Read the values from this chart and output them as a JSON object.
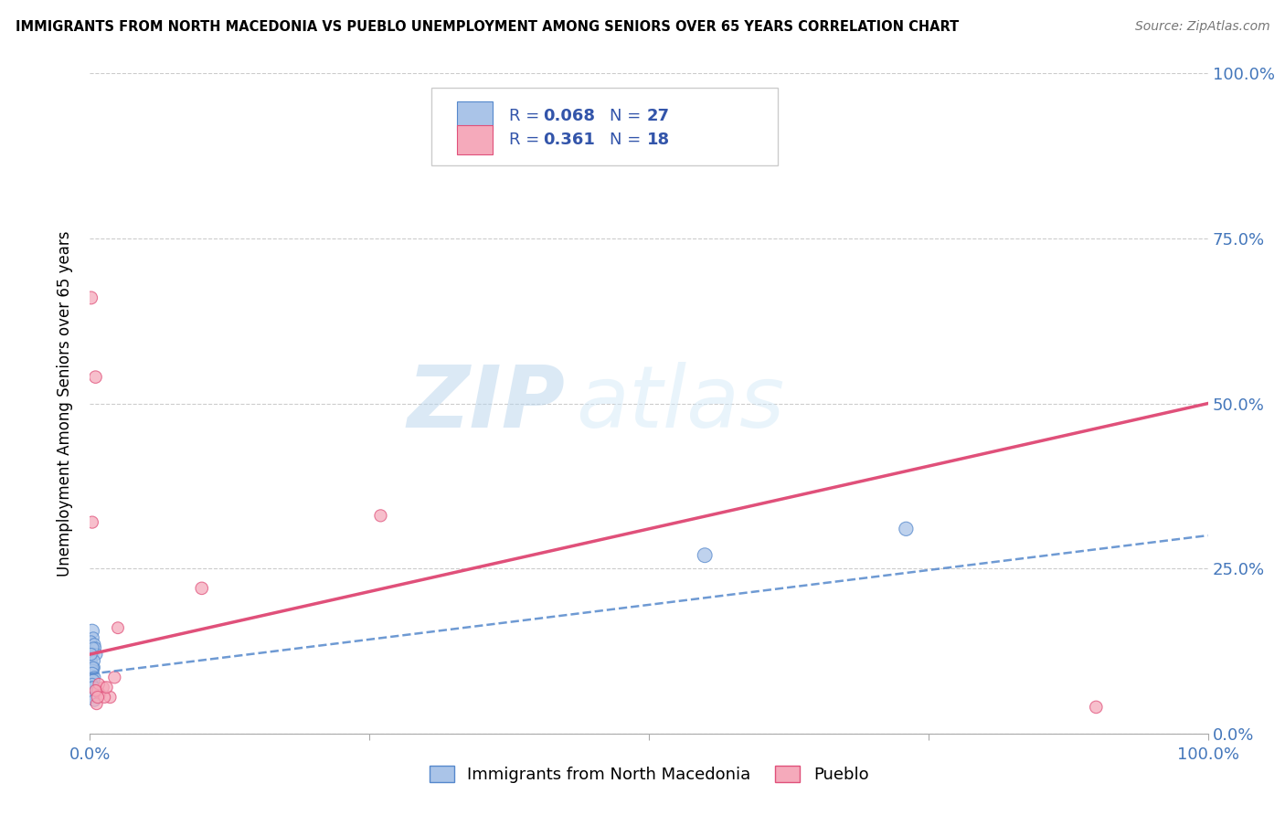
{
  "title": "IMMIGRANTS FROM NORTH MACEDONIA VS PUEBLO UNEMPLOYMENT AMONG SENIORS OVER 65 YEARS CORRELATION CHART",
  "source": "Source: ZipAtlas.com",
  "ylabel": "Unemployment Among Seniors over 65 years",
  "xlim": [
    0,
    1.0
  ],
  "ylim": [
    0,
    1.0
  ],
  "blue_R": "0.068",
  "blue_N": "27",
  "pink_R": "0.361",
  "pink_N": "18",
  "blue_color": "#aac4e8",
  "pink_color": "#f5aabb",
  "blue_line_color": "#5588cc",
  "pink_line_color": "#e0507a",
  "watermark_zip": "ZIP",
  "watermark_atlas": "atlas",
  "blue_scatter_x": [
    0.002,
    0.003,
    0.001,
    0.004,
    0.005,
    0.002,
    0.003,
    0.006,
    0.001,
    0.002,
    0.003,
    0.004,
    0.002,
    0.001,
    0.003,
    0.002,
    0.004,
    0.003,
    0.002,
    0.001,
    0.005,
    0.003,
    0.002,
    0.004,
    0.55,
    0.73,
    0.003
  ],
  "blue_scatter_y": [
    0.155,
    0.145,
    0.14,
    0.135,
    0.13,
    0.12,
    0.1,
    0.12,
    0.11,
    0.1,
    0.13,
    0.11,
    0.095,
    0.12,
    0.1,
    0.09,
    0.085,
    0.08,
    0.075,
    0.07,
    0.065,
    0.06,
    0.055,
    0.05,
    0.27,
    0.31,
    0.07
  ],
  "blue_scatter_sizes": [
    120,
    80,
    70,
    90,
    75,
    100,
    110,
    80,
    90,
    100,
    75,
    80,
    105,
    90,
    80,
    115,
    90,
    100,
    80,
    75,
    90,
    100,
    80,
    90,
    130,
    120,
    90
  ],
  "pink_scatter_x": [
    0.002,
    0.025,
    0.001,
    0.005,
    0.26,
    0.009,
    0.012,
    0.018,
    0.006,
    0.007,
    0.1,
    0.013,
    0.022,
    0.008,
    0.005,
    0.007,
    0.015,
    0.9
  ],
  "pink_scatter_y": [
    0.32,
    0.16,
    0.66,
    0.54,
    0.33,
    0.06,
    0.07,
    0.055,
    0.045,
    0.065,
    0.22,
    0.055,
    0.085,
    0.075,
    0.065,
    0.055,
    0.07,
    0.04
  ],
  "pink_scatter_sizes": [
    90,
    85,
    100,
    95,
    90,
    85,
    80,
    90,
    85,
    80,
    95,
    85,
    90,
    80,
    85,
    90,
    85,
    95
  ],
  "blue_line_x": [
    0.0,
    1.0
  ],
  "blue_line_y": [
    0.09,
    0.3
  ],
  "pink_line_x": [
    0.0,
    1.0
  ],
  "pink_line_y": [
    0.12,
    0.5
  ]
}
